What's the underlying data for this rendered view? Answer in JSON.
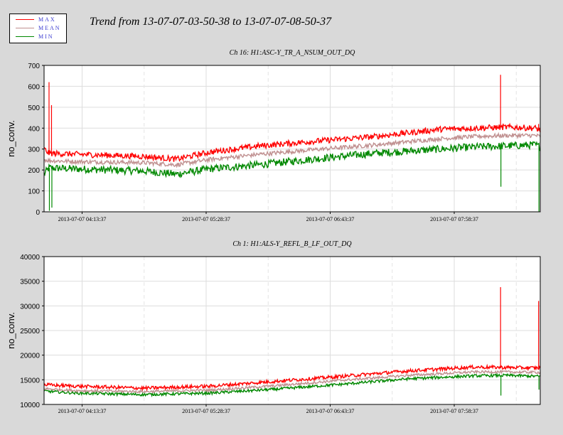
{
  "legend": {
    "items": [
      {
        "label": "MAX",
        "color": "#ff0000"
      },
      {
        "label": "MEAN",
        "color": "#c09090"
      },
      {
        "label": "MIN",
        "color": "#008800"
      }
    ]
  },
  "page_title": "Trend from 13-07-07-03-50-38 to 13-07-07-08-50-37",
  "chart_data": [
    {
      "type": "line",
      "title": "Ch 16: H1:ASC-Y_TR_A_NSUM_OUT_DQ",
      "xlabel": "",
      "ylabel": "no_conv.",
      "ylim": [
        0,
        700
      ],
      "yticks": [
        0,
        100,
        200,
        300,
        400,
        500,
        600,
        700
      ],
      "xlim_minutes": [
        0,
        300
      ],
      "x_ticks": [
        {
          "label": "2013-07-07 04:13:37",
          "minute": 23
        },
        {
          "label": "2013-07-07 05:28:37",
          "minute": 98
        },
        {
          "label": "2013-07-07 06:43:37",
          "minute": 173
        },
        {
          "label": "2013-07-07 07:58:37",
          "minute": 248
        }
      ],
      "grid": true,
      "x_minutes": [
        0,
        3,
        20,
        60,
        80,
        100,
        130,
        160,
        200,
        240,
        260,
        280,
        297,
        300
      ],
      "series": [
        {
          "name": "MAX",
          "color": "#ff0000",
          "values": [
            300,
            280,
            275,
            265,
            252,
            285,
            315,
            335,
            360,
            395,
            400,
            405,
            400,
            390
          ],
          "noise": 14
        },
        {
          "name": "MEAN",
          "color": "#c09090",
          "values": [
            250,
            245,
            240,
            235,
            225,
            250,
            275,
            295,
            320,
            350,
            360,
            365,
            365,
            360
          ],
          "noise": 10
        },
        {
          "name": "MIN",
          "color": "#008800",
          "values": [
            180,
            210,
            205,
            195,
            180,
            205,
            225,
            250,
            280,
            300,
            310,
            315,
            320,
            310
          ],
          "noise": 18
        }
      ],
      "spikes": [
        {
          "minute": 3,
          "max": 620,
          "min": 5
        },
        {
          "minute": 4.5,
          "max": 510,
          "min": 20
        },
        {
          "minute": 276,
          "max": 655,
          "min": 120
        },
        {
          "minute": 299,
          "max": 420,
          "min": 0
        }
      ]
    },
    {
      "type": "line",
      "title": "Ch 1: H1:ALS-Y_REFL_B_LF_OUT_DQ",
      "xlabel": "",
      "ylabel": "no_conv.",
      "ylim": [
        10000,
        40000
      ],
      "yticks": [
        10000,
        15000,
        20000,
        25000,
        30000,
        35000,
        40000
      ],
      "xlim_minutes": [
        0,
        300
      ],
      "x_ticks": [
        {
          "label": "2013-07-07 04:13:37",
          "minute": 23
        },
        {
          "label": "2013-07-07 05:28:37",
          "minute": 98
        },
        {
          "label": "2013-07-07 06:43:37",
          "minute": 173
        },
        {
          "label": "2013-07-07 07:58:37",
          "minute": 248
        }
      ],
      "grid": true,
      "x_minutes": [
        0,
        20,
        60,
        100,
        140,
        180,
        220,
        260,
        280,
        300
      ],
      "series": [
        {
          "name": "MAX",
          "color": "#ff0000",
          "values": [
            14000,
            13700,
            13300,
            13700,
            14700,
            15700,
            16800,
            17600,
            17500,
            17400
          ],
          "noise": 350
        },
        {
          "name": "MEAN",
          "color": "#c09090",
          "values": [
            13200,
            12800,
            12600,
            12900,
            13800,
            14900,
            15900,
            16600,
            16600,
            16500
          ],
          "noise": 250
        },
        {
          "name": "MIN",
          "color": "#008800",
          "values": [
            12700,
            12300,
            12000,
            12300,
            13100,
            14100,
            15200,
            15800,
            15900,
            15700
          ],
          "noise": 280
        }
      ],
      "spikes": [
        {
          "minute": 276,
          "max": 33800,
          "min": 11800
        },
        {
          "minute": 299,
          "max": 31000,
          "min": 13000
        }
      ]
    }
  ]
}
